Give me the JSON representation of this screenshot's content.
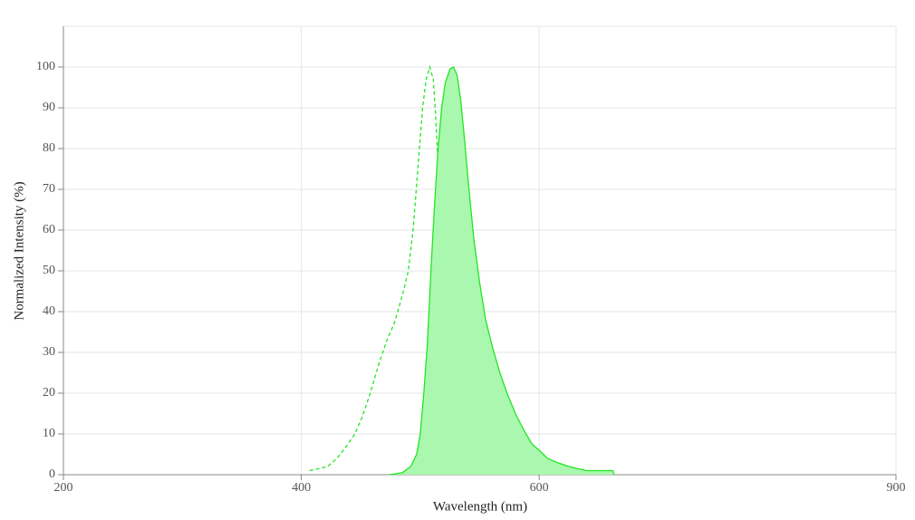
{
  "chart_data": {
    "type": "line",
    "xlabel": "Wavelength (nm)",
    "ylabel": "Normalized Intensity (%)",
    "xlim": [
      200,
      900
    ],
    "xticks": [
      200,
      400,
      600,
      900
    ],
    "ylim": [
      0,
      110
    ],
    "yticks": [
      0,
      10,
      20,
      30,
      40,
      50,
      60,
      70,
      80,
      90,
      100
    ],
    "grid": true,
    "series": [
      {
        "color": "#22e622",
        "dashed": true,
        "filled": false,
        "x": [
          407,
          415,
          422,
          430,
          438,
          445,
          451,
          458,
          465,
          472,
          478,
          485,
          490,
          494,
          498,
          502,
          505,
          508,
          511,
          513,
          516,
          519,
          522,
          525,
          528,
          531,
          535,
          540,
          547,
          557
        ],
        "values": [
          1,
          1.5,
          2,
          4,
          7,
          10,
          14,
          20,
          27,
          33,
          37,
          44,
          50,
          60,
          75,
          90,
          97,
          100,
          97,
          88,
          70,
          50,
          33,
          22,
          14,
          7,
          3,
          1,
          0.5,
          0
        ]
      },
      {
        "color": "#22e622",
        "dashed": false,
        "filled": true,
        "fill": "#aaf7b0",
        "x": [
          474,
          485,
          492,
          497,
          500,
          503,
          506,
          509,
          512,
          515,
          518,
          521,
          525,
          528,
          531,
          534,
          537,
          541,
          545,
          550,
          555,
          561,
          567,
          573,
          580,
          587,
          594,
          600,
          607,
          615,
          625,
          640,
          662,
          663
        ],
        "values": [
          0,
          0.5,
          2,
          5,
          10,
          20,
          32,
          50,
          66,
          80,
          90,
          96,
          99.5,
          100,
          98,
          92,
          83,
          70,
          58,
          47,
          38,
          31,
          25,
          20,
          15,
          11,
          7.5,
          6,
          4,
          3,
          2,
          1,
          1,
          0
        ]
      }
    ]
  }
}
